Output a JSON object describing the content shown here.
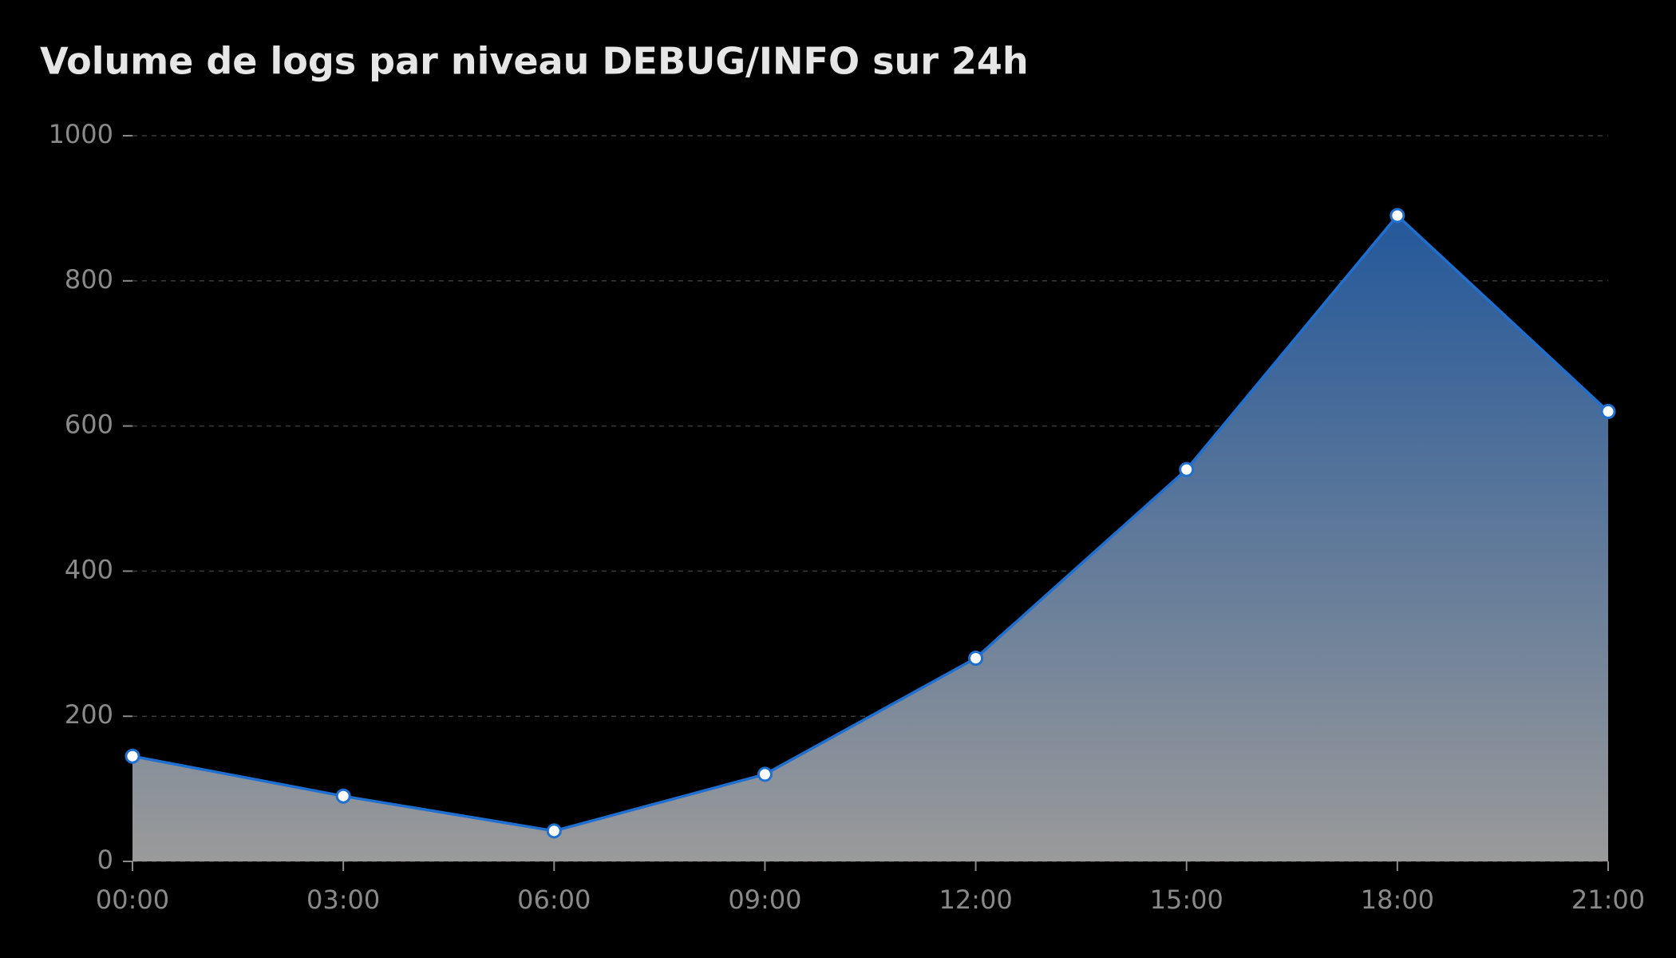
{
  "chart_data": {
    "type": "area",
    "title": "Volume de logs par niveau DEBUG/INFO sur 24h",
    "categories": [
      "00:00",
      "03:00",
      "06:00",
      "09:00",
      "12:00",
      "15:00",
      "18:00",
      "21:00"
    ],
    "values": [
      145,
      90,
      42,
      120,
      280,
      540,
      890,
      620
    ],
    "color": "#1f6fd1",
    "ylim": [
      0,
      1000
    ],
    "yticks": [
      0,
      200,
      400,
      600,
      800,
      1000
    ],
    "grid": true
  }
}
